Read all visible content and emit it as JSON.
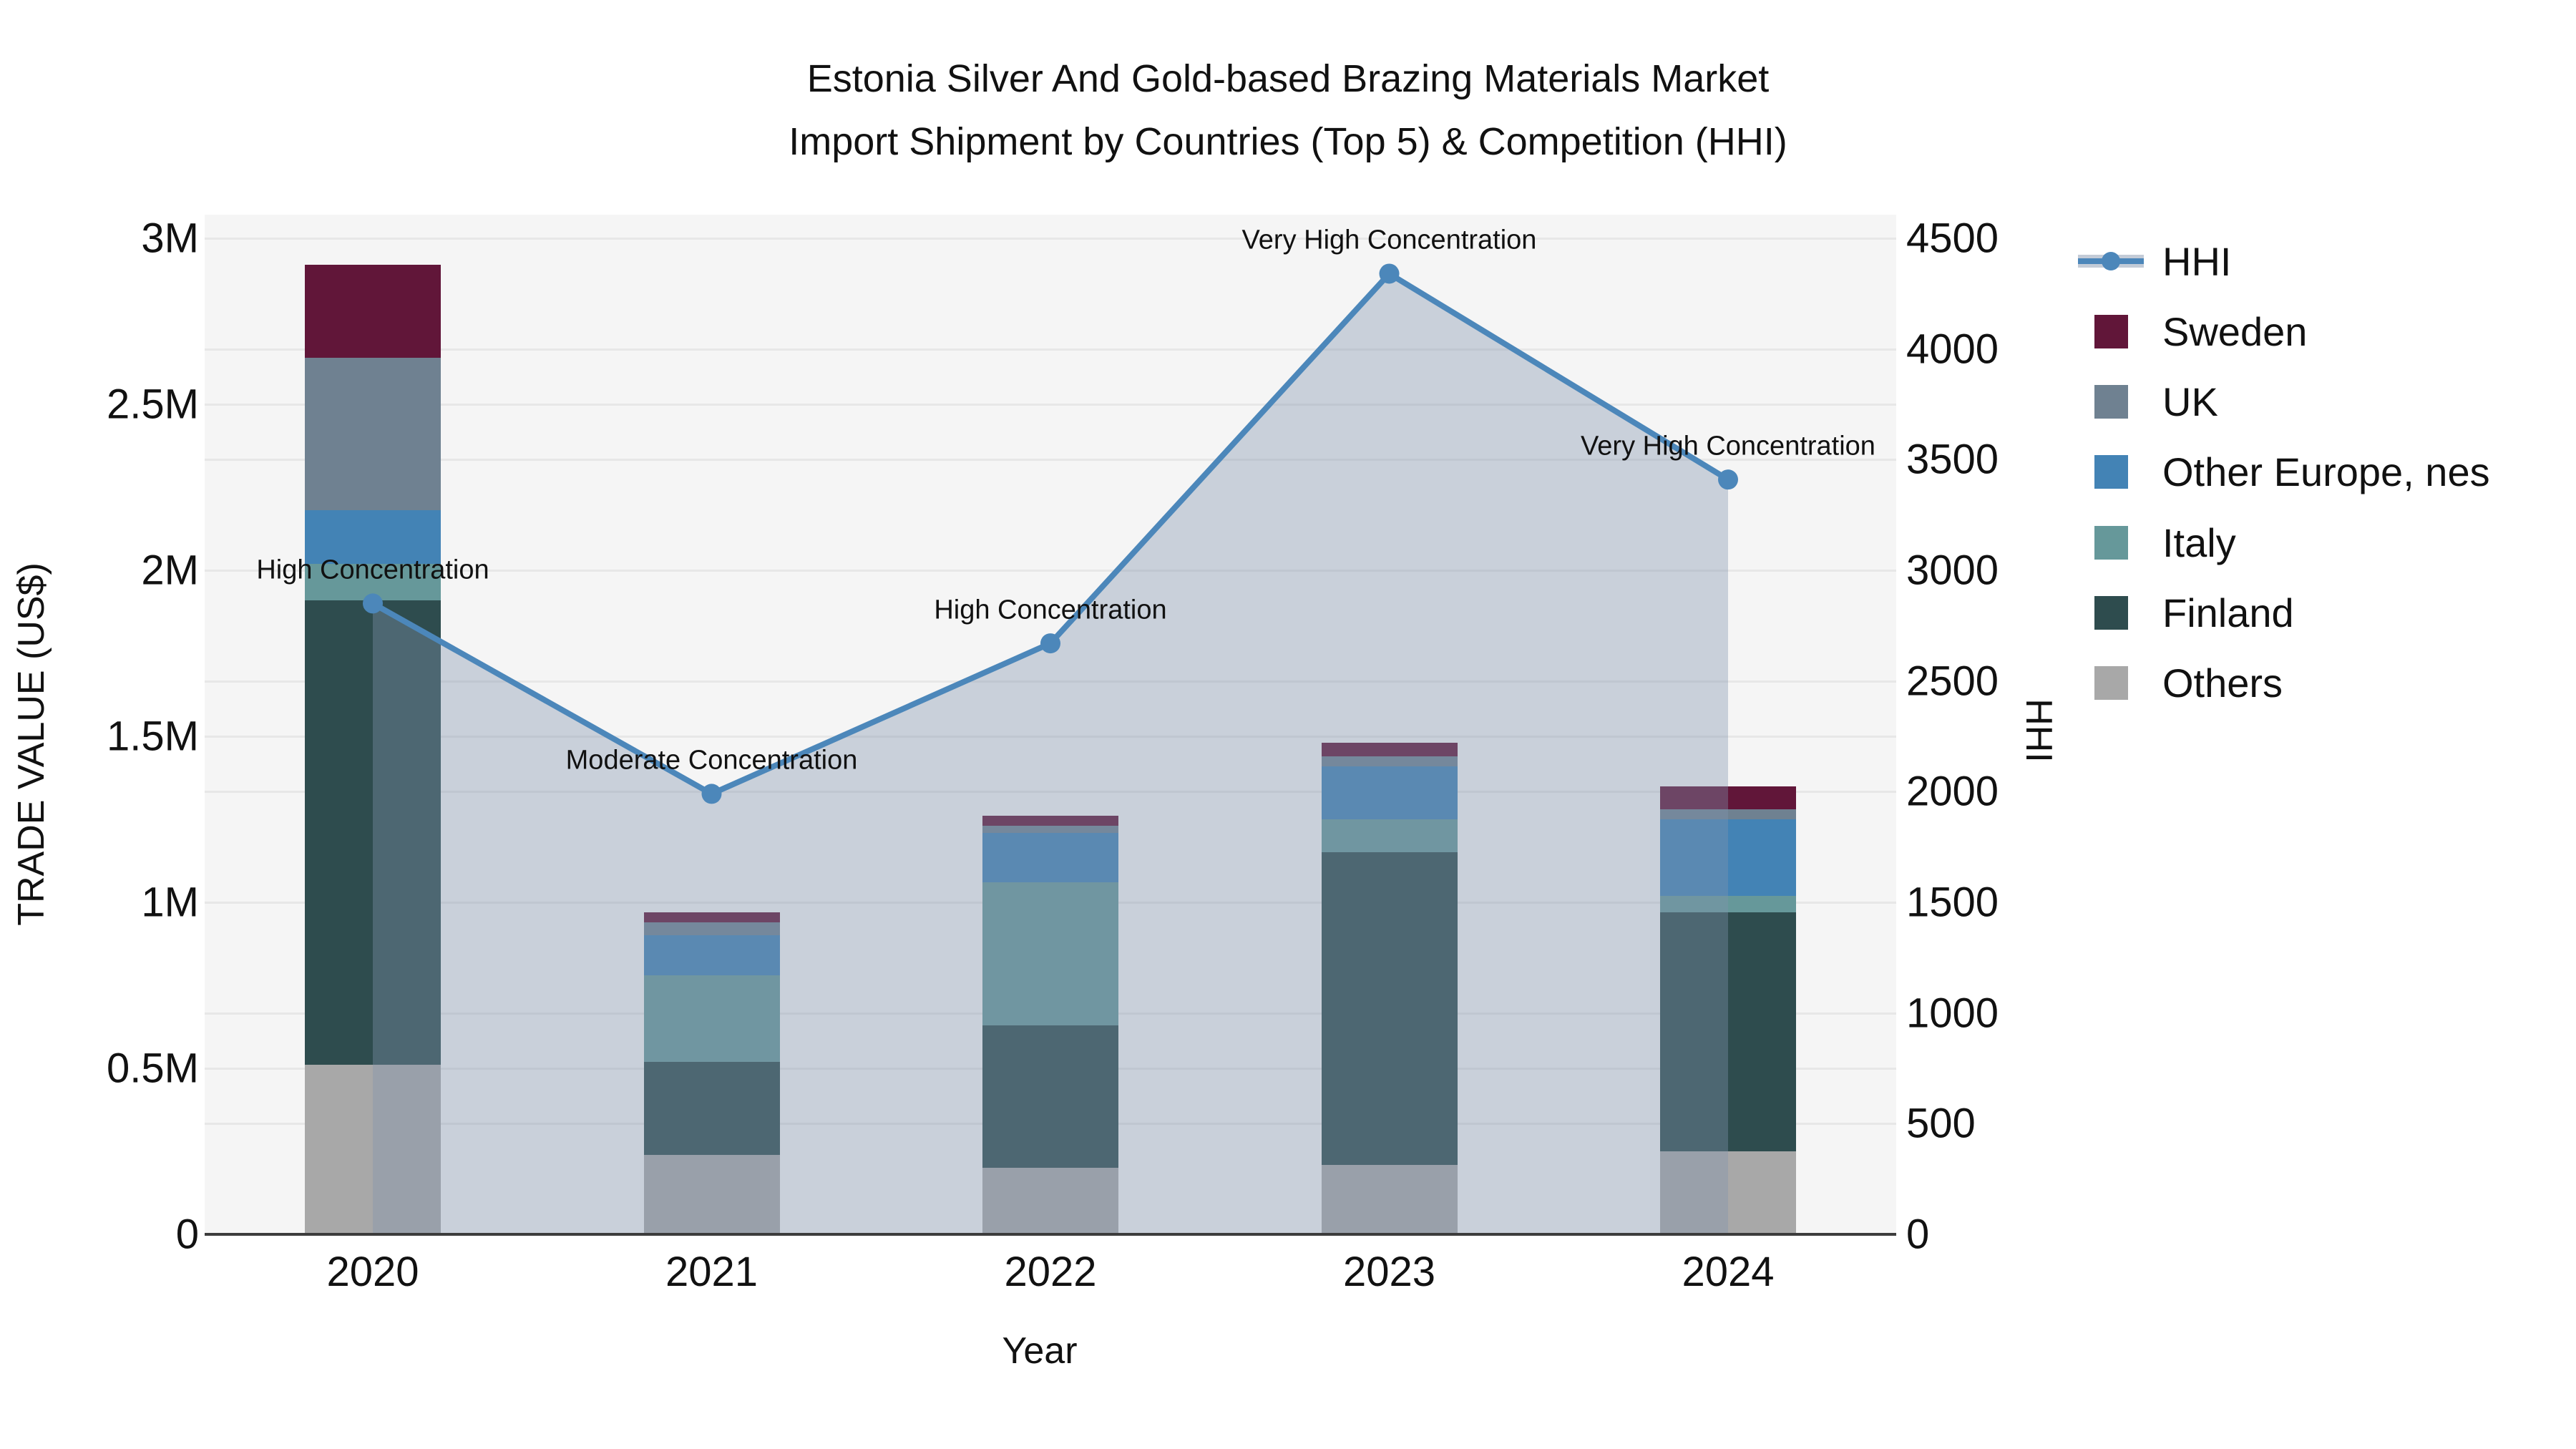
{
  "title": {
    "line1": "Estonia Silver And Gold-based Brazing Materials Market",
    "line2": "Import Shipment by Countries (Top 5) & Competition (HHI)"
  },
  "axes": {
    "left": {
      "label": "TRADE VALUE (US$)",
      "tick_labels": [
        "0",
        "0.5M",
        "1M",
        "1.5M",
        "2M",
        "2.5M",
        "3M"
      ],
      "tick_values_millions": [
        0,
        0.5,
        1,
        1.5,
        2,
        2.5,
        3
      ]
    },
    "right": {
      "label": "HHI",
      "tick_values": [
        0,
        500,
        1000,
        1500,
        2000,
        2500,
        3000,
        3500,
        4000,
        4500
      ]
    },
    "x": {
      "label": "Year"
    }
  },
  "legend": [
    {
      "label": "HHI",
      "type": "line",
      "color": "#4c87ba"
    },
    {
      "label": "Sweden",
      "type": "patch",
      "color": "#611639"
    },
    {
      "label": "UK",
      "type": "patch",
      "color": "#6f8191"
    },
    {
      "label": "Other Europe, nes",
      "type": "patch",
      "color": "#4383b5"
    },
    {
      "label": "Italy",
      "type": "patch",
      "color": "#66989a"
    },
    {
      "label": "Finland",
      "type": "patch",
      "color": "#2e4c4e"
    },
    {
      "label": "Others",
      "type": "patch",
      "color": "#a8a8a8"
    }
  ],
  "chart_data": {
    "type": "bar+line",
    "categories": [
      "2020",
      "2021",
      "2022",
      "2023",
      "2024"
    ],
    "bar_value_unit": "US$ millions (left axis, stacked)",
    "series": [
      {
        "name": "Others",
        "color": "#a8a8a8",
        "values": [
          0.51,
          0.24,
          0.2,
          0.21,
          0.25
        ]
      },
      {
        "name": "Finland",
        "color": "#2e4c4e",
        "values": [
          1.4,
          0.28,
          0.43,
          0.94,
          0.72
        ]
      },
      {
        "name": "Italy",
        "color": "#66989a",
        "values": [
          0.11,
          0.26,
          0.43,
          0.1,
          0.05
        ]
      },
      {
        "name": "Other Europe, nes",
        "color": "#4383b5",
        "values": [
          0.16,
          0.12,
          0.15,
          0.16,
          0.23
        ]
      },
      {
        "name": "UK",
        "color": "#6f8191",
        "values": [
          0.46,
          0.04,
          0.02,
          0.03,
          0.03
        ]
      },
      {
        "name": "Sweden",
        "color": "#611639",
        "values": [
          0.28,
          0.03,
          0.03,
          0.04,
          0.07
        ]
      }
    ],
    "line": {
      "name": "HHI",
      "color": "#4c87ba",
      "area_fill": "rgba(129,148,173,0.38)",
      "values": [
        2850,
        1990,
        2670,
        4340,
        3410
      ],
      "axis": "right"
    },
    "annotations": [
      "High Concentration",
      "Moderate Concentration",
      "High Concentration",
      "Very High Concentration",
      "Very High Concentration"
    ],
    "ylim_left_usd": [
      0,
      3000000
    ],
    "ylim_right_hhi": [
      0,
      4500
    ],
    "grid": true,
    "legend_position": "right"
  }
}
